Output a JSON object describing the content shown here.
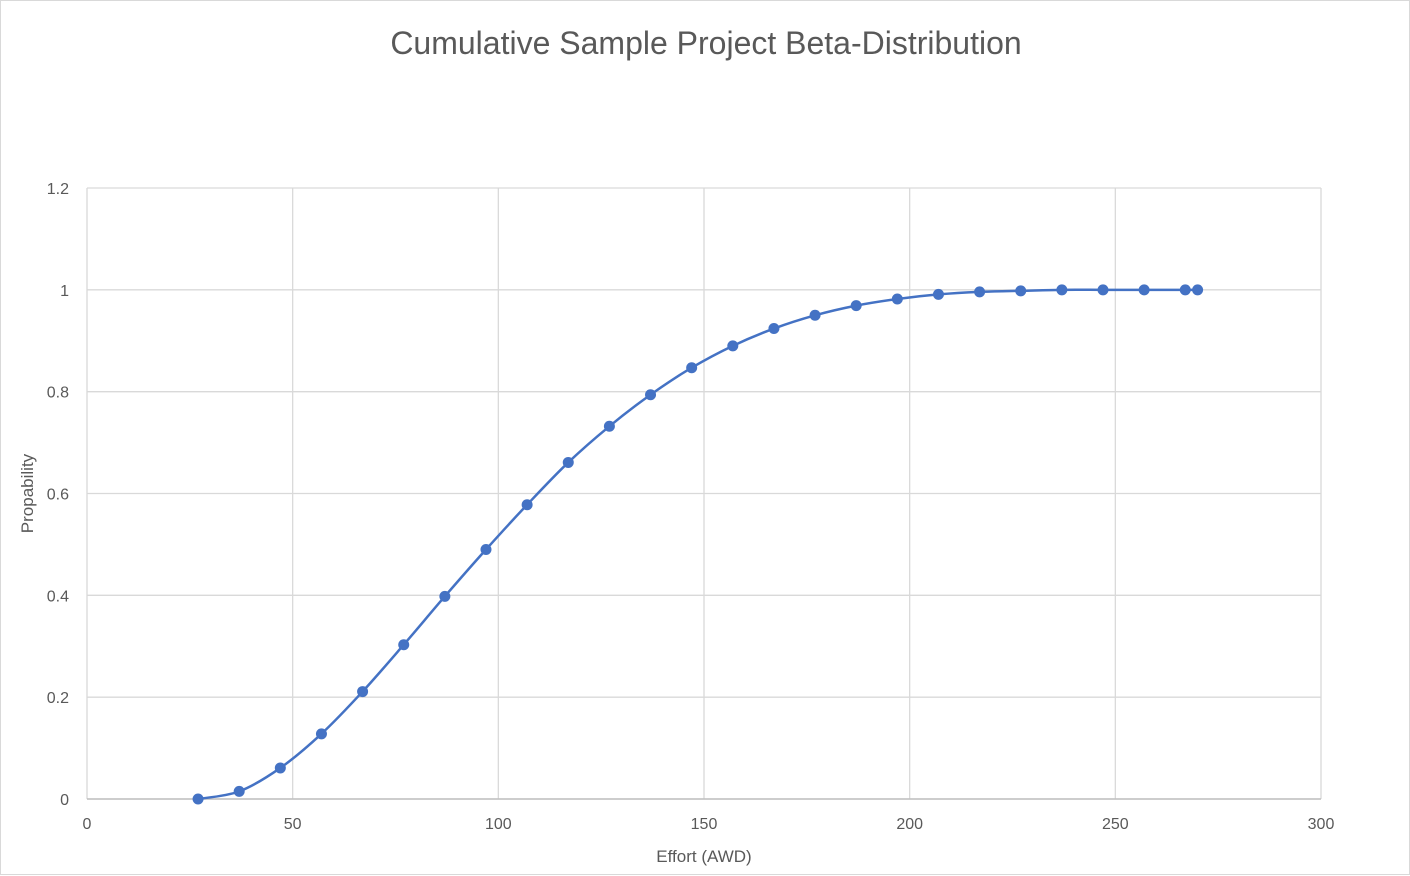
{
  "chart_data": {
    "type": "scatter",
    "title": "Cumulative Sample Project Beta-Distribution",
    "xlabel": "Effort (AWD)",
    "ylabel": "Propability",
    "xlim": [
      0,
      300
    ],
    "ylim": [
      0,
      1.2
    ],
    "x_ticks": [
      "0",
      "50",
      "100",
      "150",
      "200",
      "250",
      "300"
    ],
    "y_ticks": [
      "0",
      "0.2",
      "0.4",
      "0.6",
      "0.8",
      "1",
      "1.2"
    ],
    "grid": true,
    "legend": "none",
    "smooth_line": true,
    "series": [
      {
        "color": "#4472c4",
        "x": [
          27,
          37,
          47,
          57,
          67,
          77,
          87,
          97,
          107,
          117,
          127,
          137,
          147,
          157,
          167,
          177,
          187,
          197,
          207,
          217,
          227,
          237,
          247,
          257,
          267,
          270
        ],
        "y": [
          0.0,
          0.015,
          0.061,
          0.128,
          0.211,
          0.303,
          0.398,
          0.49,
          0.578,
          0.661,
          0.732,
          0.794,
          0.847,
          0.89,
          0.924,
          0.95,
          0.969,
          0.982,
          0.991,
          0.996,
          0.998,
          1.0,
          1.0,
          1.0,
          1.0,
          1.0
        ]
      }
    ]
  }
}
